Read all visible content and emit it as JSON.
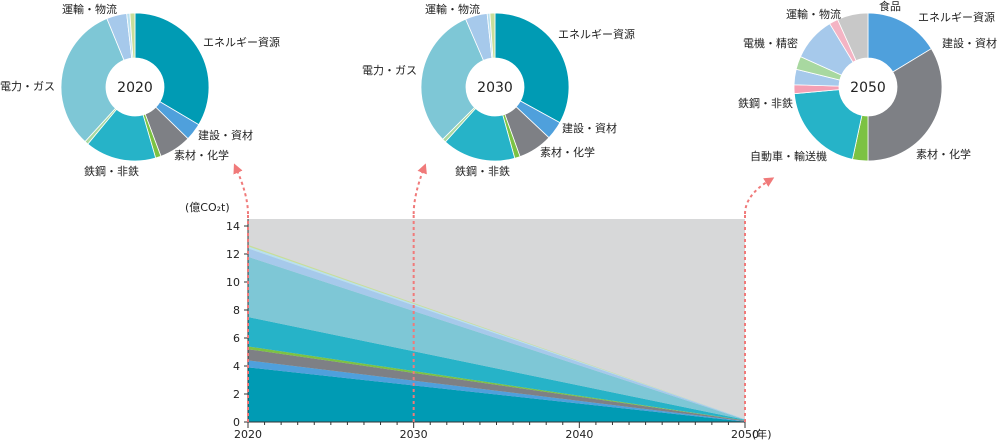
{
  "chart_data": [
    {
      "type": "area",
      "stacked": true,
      "ylabel": "(億CO₂t)",
      "xlabel": "(年)",
      "x": [
        2020,
        2050
      ],
      "xticks": [
        "2020",
        "2030",
        "2040",
        "2050"
      ],
      "yticks": [
        "0",
        "2",
        "4",
        "6",
        "8",
        "10",
        "12",
        "14"
      ],
      "ylim": [
        0,
        14.5
      ],
      "grid": false,
      "series": [
        {
          "name": "エネルギー資源",
          "values": [
            3.9,
            0.03
          ],
          "color": "#009bb4"
        },
        {
          "name": "建設・資材",
          "values": [
            0.5,
            0.03
          ],
          "color": "#4fa0dc"
        },
        {
          "name": "素材・化学",
          "values": [
            0.8,
            0.05
          ],
          "color": "#7e8085"
        },
        {
          "name": "自動車・輸送機",
          "values": [
            0.2,
            0.01
          ],
          "color": "#7cc243"
        },
        {
          "name": "鉄鋼・非鉄",
          "values": [
            2.1,
            0.04
          ],
          "color": "#26b3c8"
        },
        {
          "name": "電力・ガス",
          "values": [
            4.3,
            0.01
          ],
          "color": "#7ec7d6"
        },
        {
          "name": "運輸・物流",
          "values": [
            0.6,
            0.03
          ],
          "color": "#a6c9eb"
        },
        {
          "name": "電機・精密",
          "values": [
            0.15,
            0.01
          ],
          "color": "#b8e0f0"
        },
        {
          "name": "食品",
          "values": [
            0.1,
            0.005
          ],
          "color": "#c8de9a"
        }
      ],
      "markers": [
        "2020",
        "2030",
        "2050"
      ]
    },
    {
      "type": "pie",
      "title": "2020",
      "slices": [
        {
          "label": "エネルギー資源",
          "value": 33.5,
          "color": "#009bb4"
        },
        {
          "label": "建設・資材",
          "value": 3.8,
          "color": "#4fa0dc"
        },
        {
          "label": "素材・化学",
          "value": 7.0,
          "color": "#7e8085"
        },
        {
          "label": "",
          "value": 1.2,
          "color": "#7cc243"
        },
        {
          "label": "鉄鋼・非鉄",
          "value": 15.5,
          "color": "#26b3c8"
        },
        {
          "label": "",
          "value": 0.8,
          "color": "#a8d8a0"
        },
        {
          "label": "電力・ガス",
          "value": 32.0,
          "color": "#7ec7d6"
        },
        {
          "label": "運輸・物流",
          "value": 4.4,
          "color": "#a6c9eb"
        },
        {
          "label": "",
          "value": 0.7,
          "color": "#b8e0f0"
        },
        {
          "label": "",
          "value": 1.1,
          "color": "#c8de9a"
        }
      ]
    },
    {
      "type": "pie",
      "title": "2030",
      "slices": [
        {
          "label": "エネルギー資源",
          "value": 33.0,
          "color": "#009bb4"
        },
        {
          "label": "建設・資材",
          "value": 4.0,
          "color": "#4fa0dc"
        },
        {
          "label": "素材・化学",
          "value": 7.5,
          "color": "#7e8085"
        },
        {
          "label": "",
          "value": 1.2,
          "color": "#7cc243"
        },
        {
          "label": "鉄鋼・非鉄",
          "value": 16.0,
          "color": "#26b3c8"
        },
        {
          "label": "",
          "value": 0.8,
          "color": "#a8d8a0"
        },
        {
          "label": "電力・ガス",
          "value": 31.0,
          "color": "#7ec7d6"
        },
        {
          "label": "運輸・物流",
          "value": 4.8,
          "color": "#a6c9eb"
        },
        {
          "label": "",
          "value": 0.6,
          "color": "#b8e0f0"
        },
        {
          "label": "",
          "value": 1.1,
          "color": "#c8de9a"
        }
      ]
    },
    {
      "type": "pie",
      "title": "2050",
      "slices": [
        {
          "label": "エネルギー資源",
          "value": 0.0,
          "color": "#009bb4"
        },
        {
          "label": "建設・資材",
          "value": 17.0,
          "color": "#4fa0dc"
        },
        {
          "label": "素材・化学",
          "value": 35.0,
          "color": "#7e8085"
        },
        {
          "label": "自動車・輸送機",
          "value": 3.5,
          "color": "#7cc243"
        },
        {
          "label": "鉄鋼・非鉄",
          "value": 21.0,
          "color": "#26b3c8"
        },
        {
          "label": "電機・精密",
          "value": 2.0,
          "color": "#f4a0b4"
        },
        {
          "label": "",
          "value": 3.5,
          "color": "#a6c9eb"
        },
        {
          "label": "",
          "value": 3.0,
          "color": "#a8d8a0"
        },
        {
          "label": "運輸・物流",
          "value": 10.0,
          "color": "#a6c9eb"
        },
        {
          "label": "",
          "value": 2.0,
          "color": "#f4b4c4"
        },
        {
          "label": "食品",
          "value": 7.0,
          "color": "#c8c8c8"
        }
      ]
    }
  ]
}
